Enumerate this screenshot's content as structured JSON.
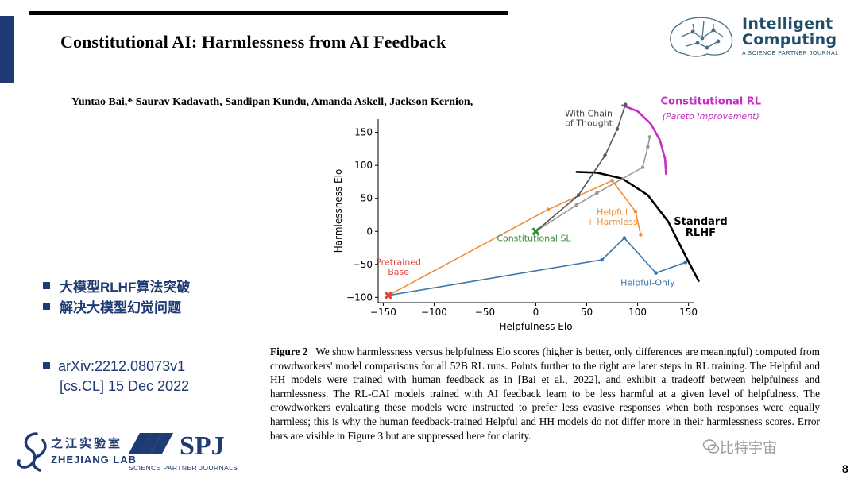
{
  "slide": {
    "title": "Constitutional AI: Harmlessness from AI Feedback",
    "authors": "Yuntao Bai,* Saurav Kadavath, Sandipan Kundu, Amanda Askell, Jackson Kernion,",
    "page_number": "8",
    "accent_color": "#1f3b73"
  },
  "logo": {
    "title_line1": "Intelligent",
    "title_line2": "Computing",
    "subtitle": "A SCIENCE PARTNER JOURNAL"
  },
  "bullets": [
    "大模型RLHF算法突破",
    "解决大模型幻觉问题"
  ],
  "arxiv": {
    "line1": "arXiv:2212.08073v1",
    "line2": "[cs.CL] 15 Dec 2022"
  },
  "caption": {
    "label": "Figure 2",
    "text": "We show harmlessness versus helpfulness Elo scores (higher is better, only differences are meaningful) computed from crowdworkers' model comparisons for all 52B RL runs. Points further to the right are later steps in RL training. The Helpful and HH models were trained with human feedback as in [Bai et al., 2022], and exhibit a tradeoff between helpfulness and harmlessness. The RL-CAI models trained with AI feedback learn to be less harmful at a given level of helpfulness. The crowdworkers evaluating these models were instructed to prefer less evasive responses when both responses were equally harmless; this is why the human feedback-trained Helpful and HH models do not differ more in their harmlessness scores. Error bars are visible in Figure 3 but are suppressed here for clarity."
  },
  "footer": {
    "zj_cn": "之江实验室",
    "zj_en": "ZHEJIANG LAB",
    "spj": "SPJ",
    "spj_sub": "SCIENCE PARTNER JOURNALS",
    "watermark": "比特宇宙"
  },
  "chart_data": {
    "type": "line",
    "xlabel": "Helpfulness Elo",
    "ylabel": "Harmlessness Elo",
    "xlim": [
      -155,
      155
    ],
    "ylim": [
      -108,
      170
    ],
    "xticks": [
      -150,
      -100,
      -50,
      0,
      50,
      100,
      150
    ],
    "yticks": [
      -100,
      -50,
      0,
      50,
      100,
      150
    ],
    "series": [
      {
        "name": "Helpful-Only",
        "color": "#3a76b0",
        "x": [
          -145,
          65,
          87,
          118,
          147
        ],
        "y": [
          -97,
          -43,
          -10,
          -63,
          -47
        ]
      },
      {
        "name": "Helpful + Harmless",
        "color": "#ef8f3c",
        "x": [
          -145,
          12,
          75,
          98,
          103
        ],
        "y": [
          -97,
          33,
          77,
          30,
          -5
        ]
      },
      {
        "name": "Constitutional SL",
        "color": "#9a9a9a",
        "x": [
          0,
          40,
          60,
          105,
          110,
          112
        ],
        "y": [
          0,
          40,
          58,
          97,
          128,
          143
        ]
      },
      {
        "name": "With Chain of Thought",
        "color": "#555555",
        "x": [
          0,
          42,
          68,
          80,
          88
        ],
        "y": [
          0,
          55,
          115,
          155,
          192
        ]
      }
    ],
    "markers": [
      {
        "label": "Pretrained Base",
        "x": -145,
        "y": -97,
        "color": "#e0473a"
      },
      {
        "label": "Constitutional SL",
        "x": 0,
        "y": 0,
        "color": "#3a8a3a"
      }
    ],
    "annotations": [
      {
        "text": "With Chain",
        "x": 52,
        "y": 174,
        "color": "#444444"
      },
      {
        "text": "of Thought",
        "x": 52,
        "y": 160,
        "color": "#444444"
      },
      {
        "text": "Helpful",
        "x": 75,
        "y": 25,
        "color": "#ef8f3c"
      },
      {
        "text": "+ Harmless",
        "x": 75,
        "y": 10,
        "color": "#ef8f3c"
      },
      {
        "text": "Constitutional SL",
        "x": -2,
        "y": -15,
        "color": "#3a8a3a"
      },
      {
        "text": "Pretrained",
        "x": -135,
        "y": -51,
        "color": "#e0473a"
      },
      {
        "text": "Base",
        "x": -135,
        "y": -66,
        "color": "#e0473a"
      },
      {
        "text": "Helpful-Only",
        "x": 110,
        "y": -82,
        "color": "#3a76b0"
      },
      {
        "text": "Standard",
        "x": 162,
        "y": 10,
        "color": "#000000"
      },
      {
        "text": "RLHF",
        "x": 162,
        "y": -7,
        "color": "#000000"
      },
      {
        "text": "Constitutional RL",
        "x": 172,
        "y": 192,
        "color": "#c42fc4"
      },
      {
        "text": "(Pareto Improvement)",
        "x": 172,
        "y": 170,
        "color": "#c42fc4"
      }
    ],
    "frontiers": [
      {
        "name": "Standard RLHF",
        "color": "#000000",
        "x": [
          40,
          60,
          85,
          110,
          130,
          148,
          160
        ],
        "y": [
          90,
          89,
          80,
          55,
          15,
          -40,
          -75
        ]
      },
      {
        "name": "Constitutional RL",
        "color": "#c42fc4",
        "x": [
          85,
          100,
          113,
          122,
          127,
          128
        ],
        "y": [
          191,
          182,
          163,
          138,
          110,
          87
        ]
      }
    ],
    "grid": false
  }
}
